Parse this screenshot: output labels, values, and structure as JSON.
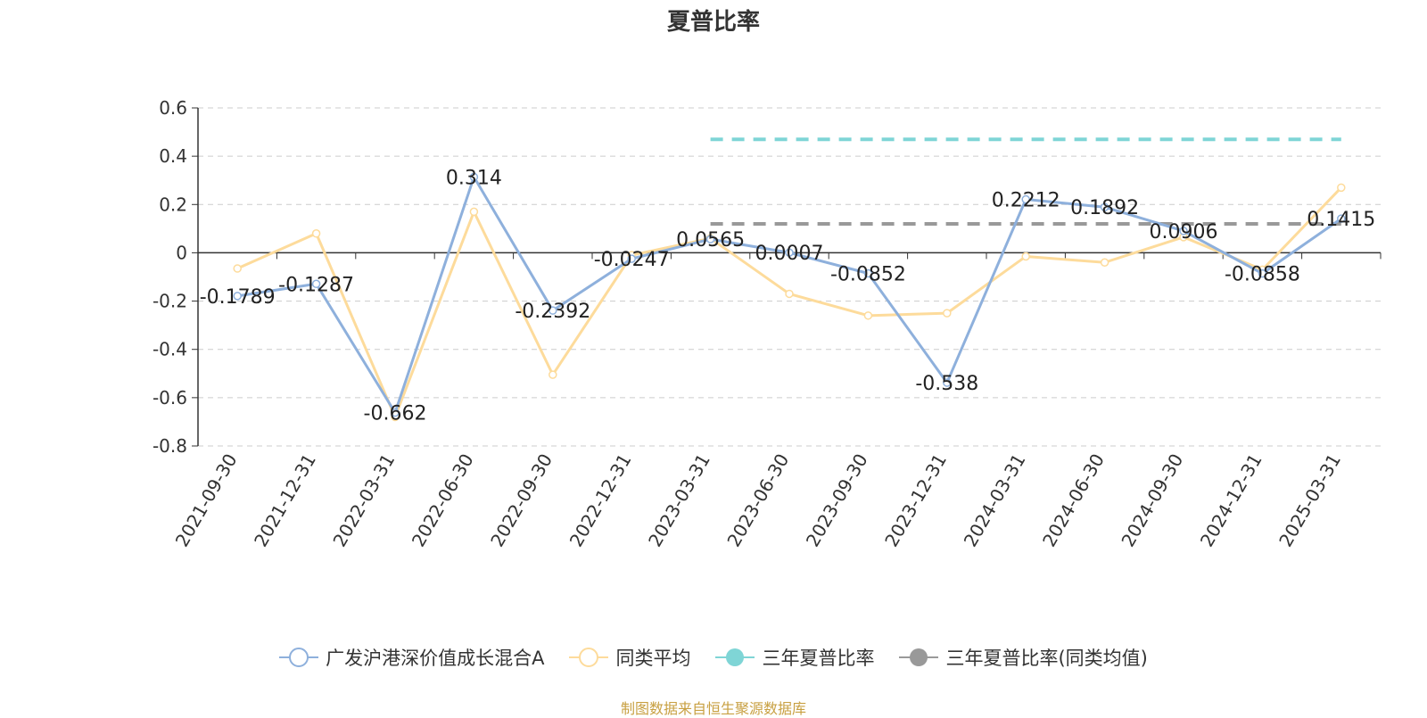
{
  "chart_data": {
    "type": "line",
    "title": "夏普比率",
    "categories": [
      "2021-09-30",
      "2021-12-31",
      "2022-03-31",
      "2022-06-30",
      "2022-09-30",
      "2022-12-31",
      "2023-03-31",
      "2023-06-30",
      "2023-09-30",
      "2023-12-31",
      "2024-03-31",
      "2024-06-30",
      "2024-09-30",
      "2024-12-31",
      "2025-03-31"
    ],
    "ylim": [
      -0.8,
      0.6
    ],
    "yticks": [
      "0.6",
      "0.4",
      "0.2",
      "0",
      "-0.2",
      "-0.4",
      "-0.6",
      "-0.8"
    ],
    "ytick_values": [
      0.6,
      0.4,
      0.2,
      0,
      -0.2,
      -0.4,
      -0.6,
      -0.8
    ],
    "grid": true,
    "legend_position": "bottom",
    "series": [
      {
        "name": "广发沪港深价值成长混合A",
        "color": "#8eb0dc",
        "values": [
          -0.1789,
          -0.1287,
          -0.662,
          0.314,
          -0.2392,
          -0.0247,
          0.0565,
          0.0007,
          -0.0852,
          -0.538,
          0.2212,
          0.1892,
          0.0906,
          -0.0858,
          0.1415
        ],
        "labels": [
          "-0.1789",
          "-0.1287",
          "-0.662",
          "0.314",
          "-0.2392",
          "-0.0247",
          "0.0565",
          "0.0007",
          "-0.0852",
          "-0.538",
          "0.2212",
          "0.1892",
          "0.0906",
          "-0.0858",
          "0.1415"
        ]
      },
      {
        "name": "同类平均",
        "color": "#fddb9b",
        "values": [
          -0.065,
          0.08,
          -0.68,
          0.17,
          -0.505,
          -0.01,
          0.06,
          -0.17,
          -0.26,
          -0.25,
          -0.015,
          -0.04,
          0.065,
          -0.07,
          0.27
        ]
      },
      {
        "name": "三年夏普比率",
        "color": "#7fd5d6",
        "start_index": 6,
        "end_index": 14,
        "value": 0.47
      },
      {
        "name": "三年夏普比率(同类均值)",
        "color": "#999999",
        "start_index": 6,
        "end_index": 14,
        "value": 0.12
      }
    ]
  },
  "source_text": "制图数据来自恒生聚源数据库"
}
